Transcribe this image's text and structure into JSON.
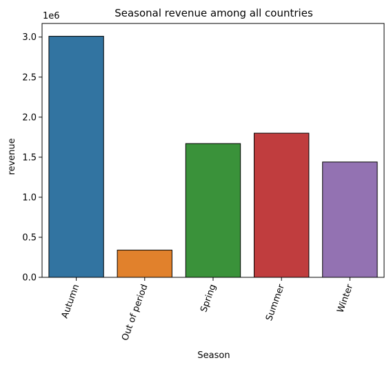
{
  "chart_data": {
    "type": "bar",
    "title": "Seasonal revenue among all countries",
    "xlabel": "Season",
    "ylabel": "revenue",
    "offset_label": "1e6",
    "categories": [
      "Autumn",
      "Out of period",
      "Spring",
      "Summer",
      "Winter"
    ],
    "values": [
      3010000,
      340000,
      1670000,
      1800000,
      1440000
    ],
    "colors": [
      "#3274a1",
      "#e1812c",
      "#3a923a",
      "#c03d3e",
      "#9372b2"
    ],
    "ylim": [
      0,
      3170000
    ],
    "yticks": [
      0,
      500000,
      1000000,
      1500000,
      2000000,
      2500000,
      3000000
    ],
    "ytick_labels": [
      "0.0",
      "0.5",
      "1.0",
      "1.5",
      "2.0",
      "2.5",
      "3.0"
    ],
    "grid": false,
    "legend": "none"
  }
}
